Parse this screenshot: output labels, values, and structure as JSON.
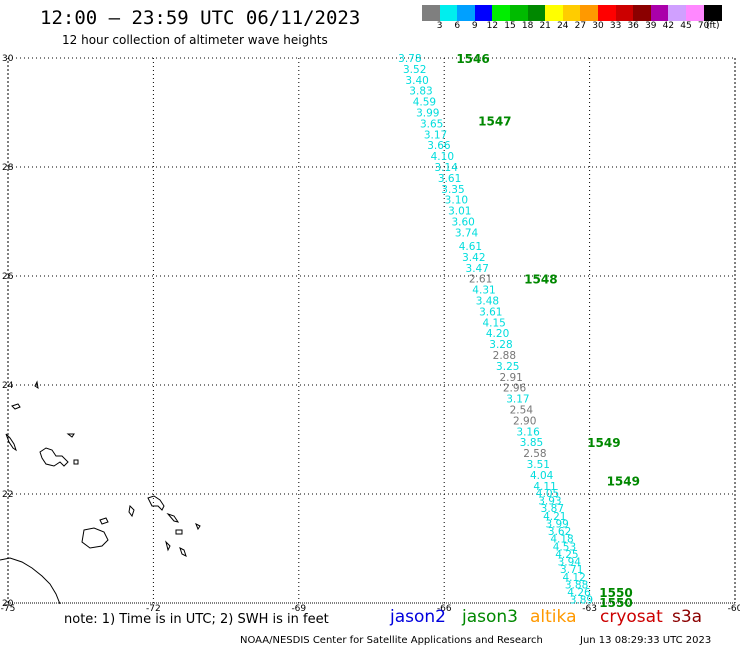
{
  "header": {
    "title": "12:00 – 23:59 UTC 06/11/2023",
    "subtitle": "12 hour collection of altimeter wave heights"
  },
  "legend": {
    "unit": "(ft)",
    "bins": [
      {
        "label": "3",
        "color": "#7f7f7f"
      },
      {
        "label": "6",
        "color": "#00eeee"
      },
      {
        "label": "9",
        "color": "#00a0ff"
      },
      {
        "label": "12",
        "color": "#0000ff"
      },
      {
        "label": "15",
        "color": "#00ee00"
      },
      {
        "label": "18",
        "color": "#00bb00"
      },
      {
        "label": "21",
        "color": "#008800"
      },
      {
        "label": "24",
        "color": "#ffff00"
      },
      {
        "label": "27",
        "color": "#ffcc00"
      },
      {
        "label": "30",
        "color": "#ff9900"
      },
      {
        "label": "33",
        "color": "#ff0000"
      },
      {
        "label": "36",
        "color": "#cc0000"
      },
      {
        "label": "39",
        "color": "#8b0000"
      },
      {
        "label": "42",
        "color": "#aa00aa"
      },
      {
        "label": "45",
        "color": "#d0a0ff"
      },
      {
        "label": "70",
        "color": "#ff88ff"
      },
      {
        "label": "",
        "color": "#000000"
      }
    ]
  },
  "chart_data": {
    "type": "scatter",
    "x_ticks": [
      "-75",
      "-72",
      "-69",
      "-66",
      "-63",
      "-60"
    ],
    "y_ticks": [
      "20",
      "22",
      "24",
      "26",
      "28",
      "30"
    ],
    "xlim": [
      -75,
      -60
    ],
    "ylim": [
      20,
      30
    ],
    "grid": true,
    "wave_labels": [
      {
        "v": "3.78",
        "lon": -66.95,
        "lat": 30.0,
        "c": "#00dddd"
      },
      {
        "v": "3.52",
        "lon": -66.85,
        "lat": 29.8,
        "c": "#00dddd"
      },
      {
        "v": "3.40",
        "lon": -66.8,
        "lat": 29.6,
        "c": "#00dddd"
      },
      {
        "v": "3.83",
        "lon": -66.72,
        "lat": 29.4,
        "c": "#00dddd"
      },
      {
        "v": "4.59",
        "lon": -66.65,
        "lat": 29.2,
        "c": "#00dddd"
      },
      {
        "v": "3.99",
        "lon": -66.58,
        "lat": 29.0,
        "c": "#00dddd"
      },
      {
        "v": "3.65",
        "lon": -66.5,
        "lat": 28.8,
        "c": "#00dddd"
      },
      {
        "v": "3.17",
        "lon": -66.42,
        "lat": 28.6,
        "c": "#00dddd"
      },
      {
        "v": "3.66",
        "lon": -66.35,
        "lat": 28.4,
        "c": "#00dddd"
      },
      {
        "v": "4.10",
        "lon": -66.28,
        "lat": 28.2,
        "c": "#00dddd"
      },
      {
        "v": "3.14",
        "lon": -66.2,
        "lat": 28.0,
        "c": "#00dddd"
      },
      {
        "v": "3.61",
        "lon": -66.13,
        "lat": 27.8,
        "c": "#00dddd"
      },
      {
        "v": "3.35",
        "lon": -66.06,
        "lat": 27.6,
        "c": "#00dddd"
      },
      {
        "v": "3.10",
        "lon": -65.99,
        "lat": 27.4,
        "c": "#00dddd"
      },
      {
        "v": "3.01",
        "lon": -65.92,
        "lat": 27.2,
        "c": "#00dddd"
      },
      {
        "v": "3.60",
        "lon": -65.85,
        "lat": 27.0,
        "c": "#00dddd"
      },
      {
        "v": "3.74",
        "lon": -65.78,
        "lat": 26.8,
        "c": "#00dddd"
      },
      {
        "v": "4.61",
        "lon": -65.7,
        "lat": 26.55,
        "c": "#00dddd"
      },
      {
        "v": "3.42",
        "lon": -65.63,
        "lat": 26.35,
        "c": "#00dddd"
      },
      {
        "v": "3.47",
        "lon": -65.56,
        "lat": 26.15,
        "c": "#00dddd"
      },
      {
        "v": "2.61",
        "lon": -65.49,
        "lat": 25.95,
        "c": "#777777"
      },
      {
        "v": "4.31",
        "lon": -65.42,
        "lat": 25.75,
        "c": "#00dddd"
      },
      {
        "v": "3.48",
        "lon": -65.35,
        "lat": 25.55,
        "c": "#00dddd"
      },
      {
        "v": "3.61",
        "lon": -65.28,
        "lat": 25.35,
        "c": "#00dddd"
      },
      {
        "v": "4.15",
        "lon": -65.21,
        "lat": 25.15,
        "c": "#00dddd"
      },
      {
        "v": "4.20",
        "lon": -65.14,
        "lat": 24.95,
        "c": "#00dddd"
      },
      {
        "v": "3.28",
        "lon": -65.07,
        "lat": 24.75,
        "c": "#00dddd"
      },
      {
        "v": "2.88",
        "lon": -65.0,
        "lat": 24.55,
        "c": "#777777"
      },
      {
        "v": "3.25",
        "lon": -64.93,
        "lat": 24.35,
        "c": "#00dddd"
      },
      {
        "v": "2.91",
        "lon": -64.86,
        "lat": 24.15,
        "c": "#777777"
      },
      {
        "v": "2.96",
        "lon": -64.79,
        "lat": 23.95,
        "c": "#777777"
      },
      {
        "v": "3.17",
        "lon": -64.72,
        "lat": 23.75,
        "c": "#00dddd"
      },
      {
        "v": "2.54",
        "lon": -64.65,
        "lat": 23.55,
        "c": "#777777"
      },
      {
        "v": "2.90",
        "lon": -64.58,
        "lat": 23.35,
        "c": "#777777"
      },
      {
        "v": "3.16",
        "lon": -64.51,
        "lat": 23.15,
        "c": "#00dddd"
      },
      {
        "v": "3.85",
        "lon": -64.44,
        "lat": 22.95,
        "c": "#00dddd"
      },
      {
        "v": "2.58",
        "lon": -64.37,
        "lat": 22.75,
        "c": "#777777"
      },
      {
        "v": "3.51",
        "lon": -64.3,
        "lat": 22.55,
        "c": "#00dddd"
      },
      {
        "v": "4.04",
        "lon": -64.23,
        "lat": 22.35,
        "c": "#00dddd"
      },
      {
        "v": "4.11",
        "lon": -64.16,
        "lat": 22.15,
        "c": "#00dddd"
      },
      {
        "v": "4.05",
        "lon": -64.11,
        "lat": 22.02,
        "c": "#00dddd"
      },
      {
        "v": "3.93",
        "lon": -64.06,
        "lat": 21.88,
        "c": "#00dddd"
      },
      {
        "v": "3.87",
        "lon": -64.01,
        "lat": 21.74,
        "c": "#00dddd"
      },
      {
        "v": "4.21",
        "lon": -63.96,
        "lat": 21.6,
        "c": "#00dddd"
      },
      {
        "v": "3.99",
        "lon": -63.91,
        "lat": 21.46,
        "c": "#00dddd"
      },
      {
        "v": "3.62",
        "lon": -63.86,
        "lat": 21.32,
        "c": "#00dddd"
      },
      {
        "v": "4.18",
        "lon": -63.81,
        "lat": 21.18,
        "c": "#00dddd"
      },
      {
        "v": "4.53",
        "lon": -63.76,
        "lat": 21.04,
        "c": "#00dddd"
      },
      {
        "v": "4.25",
        "lon": -63.71,
        "lat": 20.9,
        "c": "#00dddd"
      },
      {
        "v": "3.94",
        "lon": -63.66,
        "lat": 20.76,
        "c": "#00dddd"
      },
      {
        "v": "3.71",
        "lon": -63.61,
        "lat": 20.62,
        "c": "#00dddd"
      },
      {
        "v": "4.12",
        "lon": -63.56,
        "lat": 20.48,
        "c": "#00dddd"
      },
      {
        "v": "3.88",
        "lon": -63.51,
        "lat": 20.34,
        "c": "#00dddd"
      },
      {
        "v": "4.26",
        "lon": -63.46,
        "lat": 20.2,
        "c": "#00dddd"
      },
      {
        "v": "3.89",
        "lon": -63.41,
        "lat": 20.06,
        "c": "#00dddd"
      }
    ],
    "time_labels": [
      {
        "v": "1546",
        "lon": -65.75,
        "lat": 30.0
      },
      {
        "v": "1547",
        "lon": -65.3,
        "lat": 28.85
      },
      {
        "v": "1548",
        "lon": -64.35,
        "lat": 25.95
      },
      {
        "v": "1549",
        "lon": -63.05,
        "lat": 22.95
      },
      {
        "v": "1549",
        "lon": -62.65,
        "lat": 22.25
      },
      {
        "v": "1550",
        "lon": -62.8,
        "lat": 20.2
      },
      {
        "v": "1550",
        "lon": -62.8,
        "lat": 20.02
      }
    ]
  },
  "footer": {
    "note": "note: 1) Time is in UTC; 2) SWH is in feet",
    "missions": [
      {
        "name": "jason2",
        "color": "#0000dd"
      },
      {
        "name": "jason3",
        "color": "#008800"
      },
      {
        "name": "altika",
        "color": "#ff9900"
      },
      {
        "name": "cryosat",
        "color": "#cc0000"
      },
      {
        "name": "s3a",
        "color": "#8b0000"
      }
    ],
    "credit": "NOAA/NESDIS Center for Satellite Applications and Research",
    "timestamp": "Jun 13 08:29:33 UTC 2023"
  }
}
